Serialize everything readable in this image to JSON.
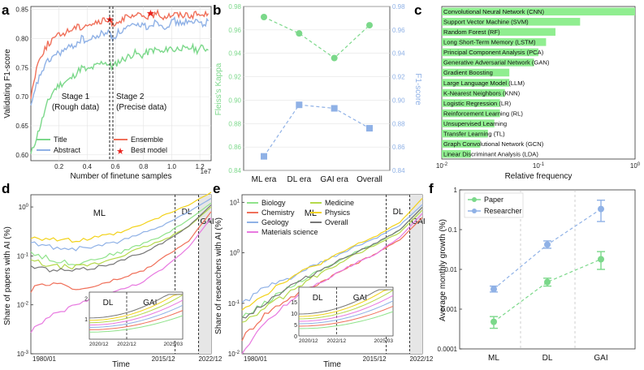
{
  "colors": {
    "title": "#7bd88a",
    "abstract": "#8fb1e6",
    "ensemble": "#f0705a",
    "best": "#e8211c",
    "green": "#7bd88a",
    "blue": "#8fb1e6",
    "bar": "#90ee90",
    "shade": "#e6e6e6"
  },
  "chart_data": [
    {
      "panel": "a",
      "type": "line",
      "xlabel": "Number of finetune samples",
      "ylabel": "Validating F1-score",
      "x_scale_note": "1e7",
      "xticks": [
        "0.2",
        "0.4",
        "0.6",
        "0.8",
        "1.0",
        "1.2"
      ],
      "yticks": [
        "0.60",
        "0.65",
        "0.70",
        "0.75",
        "0.80",
        "0.85"
      ],
      "xlim": [
        0,
        1.28
      ],
      "ylim": [
        0.59,
        0.855
      ],
      "series": [
        {
          "name": "Title",
          "x": [
            0,
            0.04,
            0.08,
            0.12,
            0.16,
            0.2,
            0.24,
            0.28,
            0.32,
            0.36,
            0.4,
            0.44,
            0.48,
            0.52,
            0.56,
            0.58,
            0.62,
            0.66,
            0.7,
            0.74,
            0.78,
            0.82,
            0.86,
            0.9,
            0.94,
            0.98,
            1.02,
            1.06,
            1.1,
            1.14,
            1.18,
            1.22,
            1.26
          ],
          "values": [
            0.6,
            0.63,
            0.66,
            0.69,
            0.71,
            0.72,
            0.725,
            0.73,
            0.74,
            0.75,
            0.745,
            0.75,
            0.755,
            0.76,
            0.755,
            0.75,
            0.76,
            0.765,
            0.77,
            0.775,
            0.77,
            0.775,
            0.78,
            0.78,
            0.775,
            0.785,
            0.78,
            0.785,
            0.78,
            0.785,
            0.78,
            0.785,
            0.78
          ]
        },
        {
          "name": "Abstract",
          "x": [
            0,
            0.04,
            0.08,
            0.12,
            0.16,
            0.2,
            0.24,
            0.28,
            0.32,
            0.36,
            0.4,
            0.44,
            0.48,
            0.52,
            0.56,
            0.58,
            0.62,
            0.66,
            0.7,
            0.74,
            0.78,
            0.82,
            0.86,
            0.9,
            0.94,
            0.98,
            1.02,
            1.06,
            1.1,
            1.14,
            1.18,
            1.22,
            1.26
          ],
          "values": [
            0.68,
            0.72,
            0.745,
            0.76,
            0.77,
            0.775,
            0.78,
            0.785,
            0.79,
            0.8,
            0.795,
            0.8,
            0.805,
            0.81,
            0.81,
            0.8,
            0.81,
            0.815,
            0.82,
            0.82,
            0.825,
            0.82,
            0.825,
            0.83,
            0.82,
            0.825,
            0.83,
            0.825,
            0.83,
            0.825,
            0.83,
            0.825,
            0.83
          ]
        },
        {
          "name": "Ensemble",
          "x": [
            0,
            0.04,
            0.08,
            0.12,
            0.16,
            0.2,
            0.24,
            0.28,
            0.32,
            0.36,
            0.4,
            0.44,
            0.48,
            0.52,
            0.56,
            0.58,
            0.62,
            0.66,
            0.7,
            0.74,
            0.78,
            0.82,
            0.86,
            0.9,
            0.94,
            0.98,
            1.02,
            1.06,
            1.1,
            1.14,
            1.18,
            1.22,
            1.26
          ],
          "values": [
            0.7,
            0.75,
            0.775,
            0.79,
            0.8,
            0.805,
            0.81,
            0.815,
            0.82,
            0.82,
            0.825,
            0.825,
            0.828,
            0.83,
            0.83,
            0.825,
            0.83,
            0.835,
            0.835,
            0.838,
            0.84,
            0.838,
            0.84,
            0.842,
            0.838,
            0.84,
            0.842,
            0.84,
            0.842,
            0.84,
            0.842,
            0.84,
            0.843
          ]
        }
      ],
      "best_models": [
        {
          "x": 0.56,
          "y": 0.833
        },
        {
          "x": 0.85,
          "y": 0.843
        }
      ],
      "legend": [
        "Title",
        "Abstract",
        "Ensemble",
        "Best model"
      ],
      "annotations": [
        "Stage 1",
        "(Rough data)",
        "Stage 2",
        "(Precise data)"
      ]
    },
    {
      "panel": "b",
      "type": "line",
      "categories": [
        "ML era",
        "DL era",
        "GAI era",
        "Overall"
      ],
      "ylabel_left": "Fleiss's Kappa",
      "ylabel_right": "F1-score",
      "yticks": [
        "0.84",
        "0.86",
        "0.88",
        "0.90",
        "0.92",
        "0.94",
        "0.96",
        "0.98"
      ],
      "ylim": [
        0.84,
        0.98
      ],
      "series": [
        {
          "name": "Fleiss's Kappa",
          "values": [
            0.971,
            0.957,
            0.936,
            0.964
          ]
        },
        {
          "name": "F1-score",
          "values": [
            0.852,
            0.896,
            0.893,
            0.876
          ]
        }
      ]
    },
    {
      "panel": "c",
      "type": "bar",
      "xlabel": "Relative frequency",
      "xscale": "log",
      "xticks": [
        "10^-2",
        "10^-1",
        "10^0"
      ],
      "categories": [
        "Convolutional Neural Network (CNN)",
        "Support Vector Machine (SVM)",
        "Random Forest (RF)",
        "Long Short-Term Memory (LSTM)",
        "Principal Component Analysis (PCA)",
        "Generative Adversarial Network (GAN)",
        "Gradient Boosting",
        "Large Language Model (LLM)",
        "K-Nearest Neighbors (KNN)",
        "Logistic Regression (LR)",
        "Reinforcement Learning (RL)",
        "Unsupervised Learning",
        "Transfer Learning (TL)",
        "Graph Convolutional Network (GCN)",
        "Linear Discriminant Analysis (LDA)"
      ],
      "values": [
        1.0,
        0.27,
        0.15,
        0.12,
        0.1,
        0.09,
        0.05,
        0.05,
        0.045,
        0.04,
        0.04,
        0.035,
        0.03,
        0.025,
        0.02
      ]
    },
    {
      "panel": "d",
      "type": "line",
      "xlabel": "Time",
      "ylabel": "Share of papers with AI (%)",
      "yscale": "log",
      "yticks": [
        "10^-3",
        "10^-2",
        "10^-1",
        "10^0"
      ],
      "xticks": [
        "1980/01",
        "2015/12",
        "2022/12"
      ],
      "era_labels": [
        "ML",
        "DL",
        "GAI"
      ],
      "inset": {
        "yticks": [
          "1",
          "2"
        ],
        "xticks": [
          "2020/12",
          "2022/12",
          "2025/03"
        ],
        "labels": [
          "DL",
          "GAI"
        ]
      },
      "series": [
        {
          "name": "Biology",
          "color": "#8fe38a",
          "values": [
            0.12,
            0.08,
            0.07,
            0.09,
            0.12,
            0.18,
            0.28,
            0.55,
            1.2
          ]
        },
        {
          "name": "Chemistry",
          "color": "#f0705a",
          "values": [
            0.02,
            0.03,
            0.02,
            0.025,
            0.035,
            0.05,
            0.1,
            0.2,
            0.8
          ]
        },
        {
          "name": "Geology",
          "color": "#8fb1e6",
          "values": [
            0.18,
            0.15,
            0.14,
            0.16,
            0.2,
            0.3,
            0.45,
            0.8,
            1.5
          ]
        },
        {
          "name": "Materials science",
          "color": "#e879e0",
          "values": [
            0.003,
            0.006,
            0.01,
            0.015,
            0.02,
            0.03,
            0.06,
            0.15,
            0.6
          ]
        },
        {
          "name": "Medicine",
          "color": "#b5d94a",
          "values": [
            0.08,
            0.06,
            0.06,
            0.07,
            0.1,
            0.15,
            0.22,
            0.4,
            1.0
          ]
        },
        {
          "name": "Physics",
          "color": "#f2d21a",
          "values": [
            0.25,
            0.22,
            0.2,
            0.24,
            0.3,
            0.45,
            0.7,
            1.1,
            2.0
          ]
        },
        {
          "name": "Overall",
          "color": "#777777",
          "values": [
            0.06,
            0.05,
            0.05,
            0.06,
            0.08,
            0.12,
            0.2,
            0.4,
            1.1
          ]
        }
      ]
    },
    {
      "panel": "e",
      "type": "line",
      "xlabel": "Time",
      "ylabel": "Share of researchers with AI (%)",
      "yscale": "log",
      "yticks": [
        "10^-2",
        "10^-1",
        "10^0",
        "10^1"
      ],
      "xticks": [
        "1980/01",
        "2015/12",
        "2022/12"
      ],
      "era_labels": [
        "ML",
        "DL",
        "GAI"
      ],
      "legend": [
        "Biology",
        "Chemistry",
        "Geology",
        "Materials science",
        "Medicine",
        "Physics",
        "Overall"
      ],
      "inset": {
        "yticks": [
          "0",
          "5",
          "10",
          "15"
        ],
        "xticks": [
          "2020/12",
          "2022/12",
          "2025/03"
        ],
        "labels": [
          "DL",
          "GAI"
        ]
      },
      "series": [
        {
          "name": "Biology",
          "color": "#8fe38a",
          "values": [
            0.05,
            0.1,
            0.2,
            0.35,
            0.6,
            1.0,
            1.6,
            2.8,
            8
          ]
        },
        {
          "name": "Chemistry",
          "color": "#f0705a",
          "values": [
            0.02,
            0.06,
            0.12,
            0.2,
            0.35,
            0.6,
            1.0,
            1.8,
            5
          ]
        },
        {
          "name": "Geology",
          "color": "#8fb1e6",
          "values": [
            0.1,
            0.2,
            0.3,
            0.5,
            0.8,
            1.3,
            2.0,
            3.5,
            9
          ]
        },
        {
          "name": "Materials science",
          "color": "#e879e0",
          "values": [
            0.01,
            0.04,
            0.1,
            0.2,
            0.35,
            0.6,
            1.0,
            2.0,
            6
          ]
        },
        {
          "name": "Medicine",
          "color": "#b5d94a",
          "values": [
            0.04,
            0.08,
            0.15,
            0.3,
            0.5,
            0.9,
            1.5,
            2.5,
            7
          ]
        },
        {
          "name": "Physics",
          "color": "#f2d21a",
          "values": [
            0.08,
            0.15,
            0.3,
            0.5,
            0.8,
            1.4,
            2.2,
            4,
            12
          ]
        },
        {
          "name": "Overall",
          "color": "#777777",
          "values": [
            0.05,
            0.1,
            0.2,
            0.35,
            0.6,
            1.0,
            1.6,
            2.8,
            8
          ]
        }
      ]
    },
    {
      "panel": "f",
      "type": "scatter",
      "categories": [
        "ML",
        "DL",
        "GAI"
      ],
      "ylabel": "Average monthly growth (%)",
      "yscale": "log",
      "yticks": [
        "0.0001",
        "0.001",
        "0.01",
        "0.1",
        "1"
      ],
      "series": [
        {
          "name": "Paper",
          "values": [
            0.00048,
            0.0048,
            0.018
          ],
          "err_low": [
            0.00033,
            0.0038,
            0.01
          ],
          "err_high": [
            0.00065,
            0.006,
            0.028
          ]
        },
        {
          "name": "Researcher",
          "values": [
            0.0032,
            0.042,
            0.33
          ],
          "err_low": [
            0.0027,
            0.034,
            0.16
          ],
          "err_high": [
            0.0038,
            0.052,
            0.55
          ]
        }
      ]
    }
  ],
  "labels": {
    "a": {
      "panel": "a",
      "xlabel": "Number of finetune samples",
      "ylabel": "Validating F1-score",
      "exp": "1e7",
      "stage1": "Stage 1",
      "stage1sub": "(Rough data)",
      "stage2": "Stage 2",
      "stage2sub": "(Precise data)",
      "legend": [
        "Title",
        "Abstract",
        "Ensemble",
        "Best model"
      ]
    },
    "b": {
      "panel": "b",
      "ylabel_left": "Fleiss's Kappa",
      "ylabel_right": "F1-score"
    },
    "c": {
      "panel": "c",
      "xlabel": "Relative frequency"
    },
    "d": {
      "panel": "d",
      "xlabel": "Time",
      "ylabel": "Share of papers with AI (%)"
    },
    "e": {
      "panel": "e",
      "xlabel": "Time",
      "ylabel": "Share of researchers with AI (%)"
    },
    "f": {
      "panel": "f",
      "ylabel": "Average monthly growth (%)",
      "legend": [
        "Paper",
        "Researcher"
      ]
    }
  }
}
